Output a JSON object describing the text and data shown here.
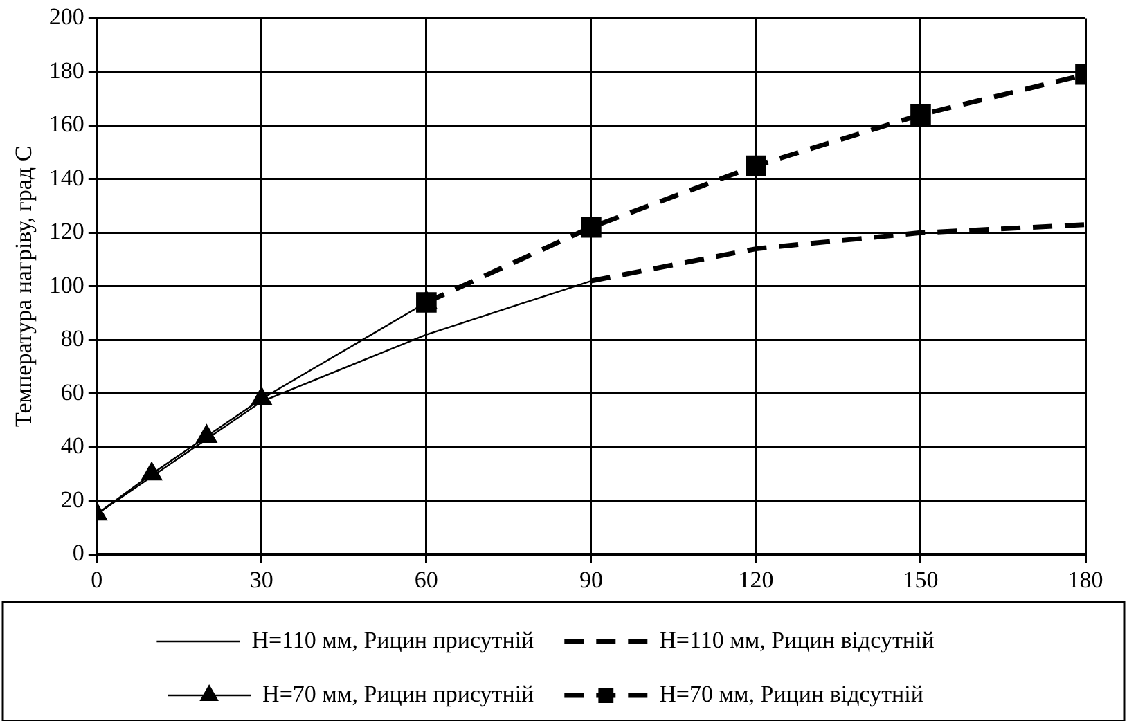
{
  "chart_data": {
    "type": "line",
    "ylabel": "Температура нагріву, град С",
    "xlim": [
      0,
      180
    ],
    "xticks": [
      0,
      30,
      60,
      90,
      120,
      150,
      180
    ],
    "ylim": [
      0,
      200
    ],
    "yticks": [
      0,
      20,
      40,
      60,
      80,
      100,
      120,
      140,
      160,
      180,
      200
    ],
    "grid": true,
    "legend": "bottom",
    "series": [
      {
        "name": "H=110 мм, Рицин присутній",
        "color": "#000000",
        "x": [
          0,
          30,
          60,
          90
        ],
        "values": [
          15,
          57,
          82,
          102
        ],
        "marker": "none",
        "line_style": "solid"
      },
      {
        "name": "H=110 мм, Рицин відсутній",
        "color": "#000000",
        "x": [
          90,
          120,
          150,
          180
        ],
        "values": [
          102,
          114,
          120,
          123
        ],
        "marker": "none",
        "line_style": "dashed"
      },
      {
        "name": "H=70 мм, Рицин присутній",
        "color": "#000000",
        "x": [
          0,
          10,
          20,
          30,
          60
        ],
        "values": [
          15,
          30,
          44,
          58,
          94
        ],
        "marker": "triangle",
        "line_style": "solid"
      },
      {
        "name": "H=70 мм, Рицин відсутній",
        "color": "#000000",
        "x": [
          60,
          90,
          120,
          150,
          180
        ],
        "values": [
          94,
          122,
          145,
          164,
          179
        ],
        "marker": "square",
        "line_style": "dashed"
      }
    ]
  }
}
